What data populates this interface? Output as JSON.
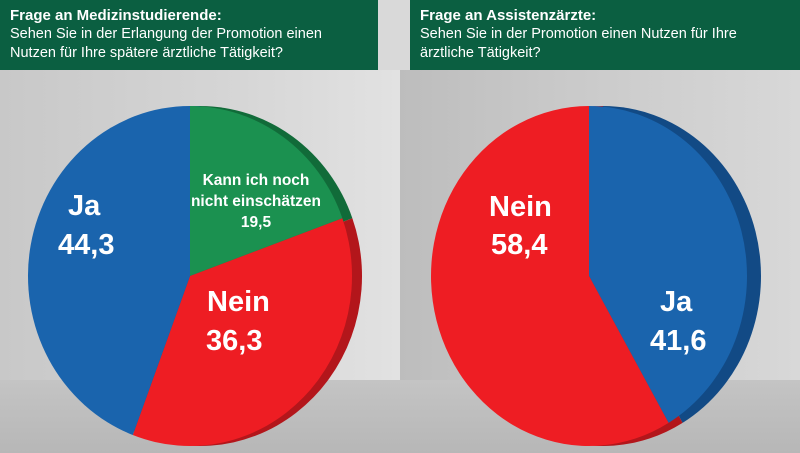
{
  "headers": [
    {
      "title": "Frage an Medizinstudierende:",
      "question_line1": "Sehen Sie in der Erlangung der Promotion einen",
      "question_line2": "Nutzen für Ihre spätere ärztliche Tätigkeit?"
    },
    {
      "title": "Frage an Assistenzärzte:",
      "question_line1": "Sehen Sie in der Promotion einen Nutzen für Ihre",
      "question_line2": "ärztliche Tätigkeit?"
    }
  ],
  "colors": {
    "header_bg": "#0b5f41",
    "ja": "#1a64ad",
    "ja_side": "#124a85",
    "nein": "#ee1d23",
    "nein_side": "#b3161b",
    "unsure": "#1b9150",
    "unsure_side": "#116b39"
  },
  "chart_data": [
    {
      "type": "pie",
      "title": "Frage an Medizinstudierende:",
      "slices": [
        {
          "label": "Ja",
          "value": 44.3,
          "value_text": "44,3",
          "color": "#1a64ad"
        },
        {
          "label": "Kann ich noch nicht einschätzen",
          "label_line1": "Kann ich noch",
          "label_line2": "nicht einschätzen",
          "value": 19.5,
          "value_text": "19,5",
          "color": "#1b9150"
        },
        {
          "label": "Nein",
          "value": 36.3,
          "value_text": "36,3",
          "color": "#ee1d23"
        }
      ]
    },
    {
      "type": "pie",
      "title": "Frage an Assistenzärzte:",
      "slices": [
        {
          "label": "Ja",
          "value": 41.6,
          "value_text": "41,6",
          "color": "#1a64ad"
        },
        {
          "label": "Nein",
          "value": 58.4,
          "value_text": "58,4",
          "color": "#ee1d23"
        }
      ]
    }
  ]
}
